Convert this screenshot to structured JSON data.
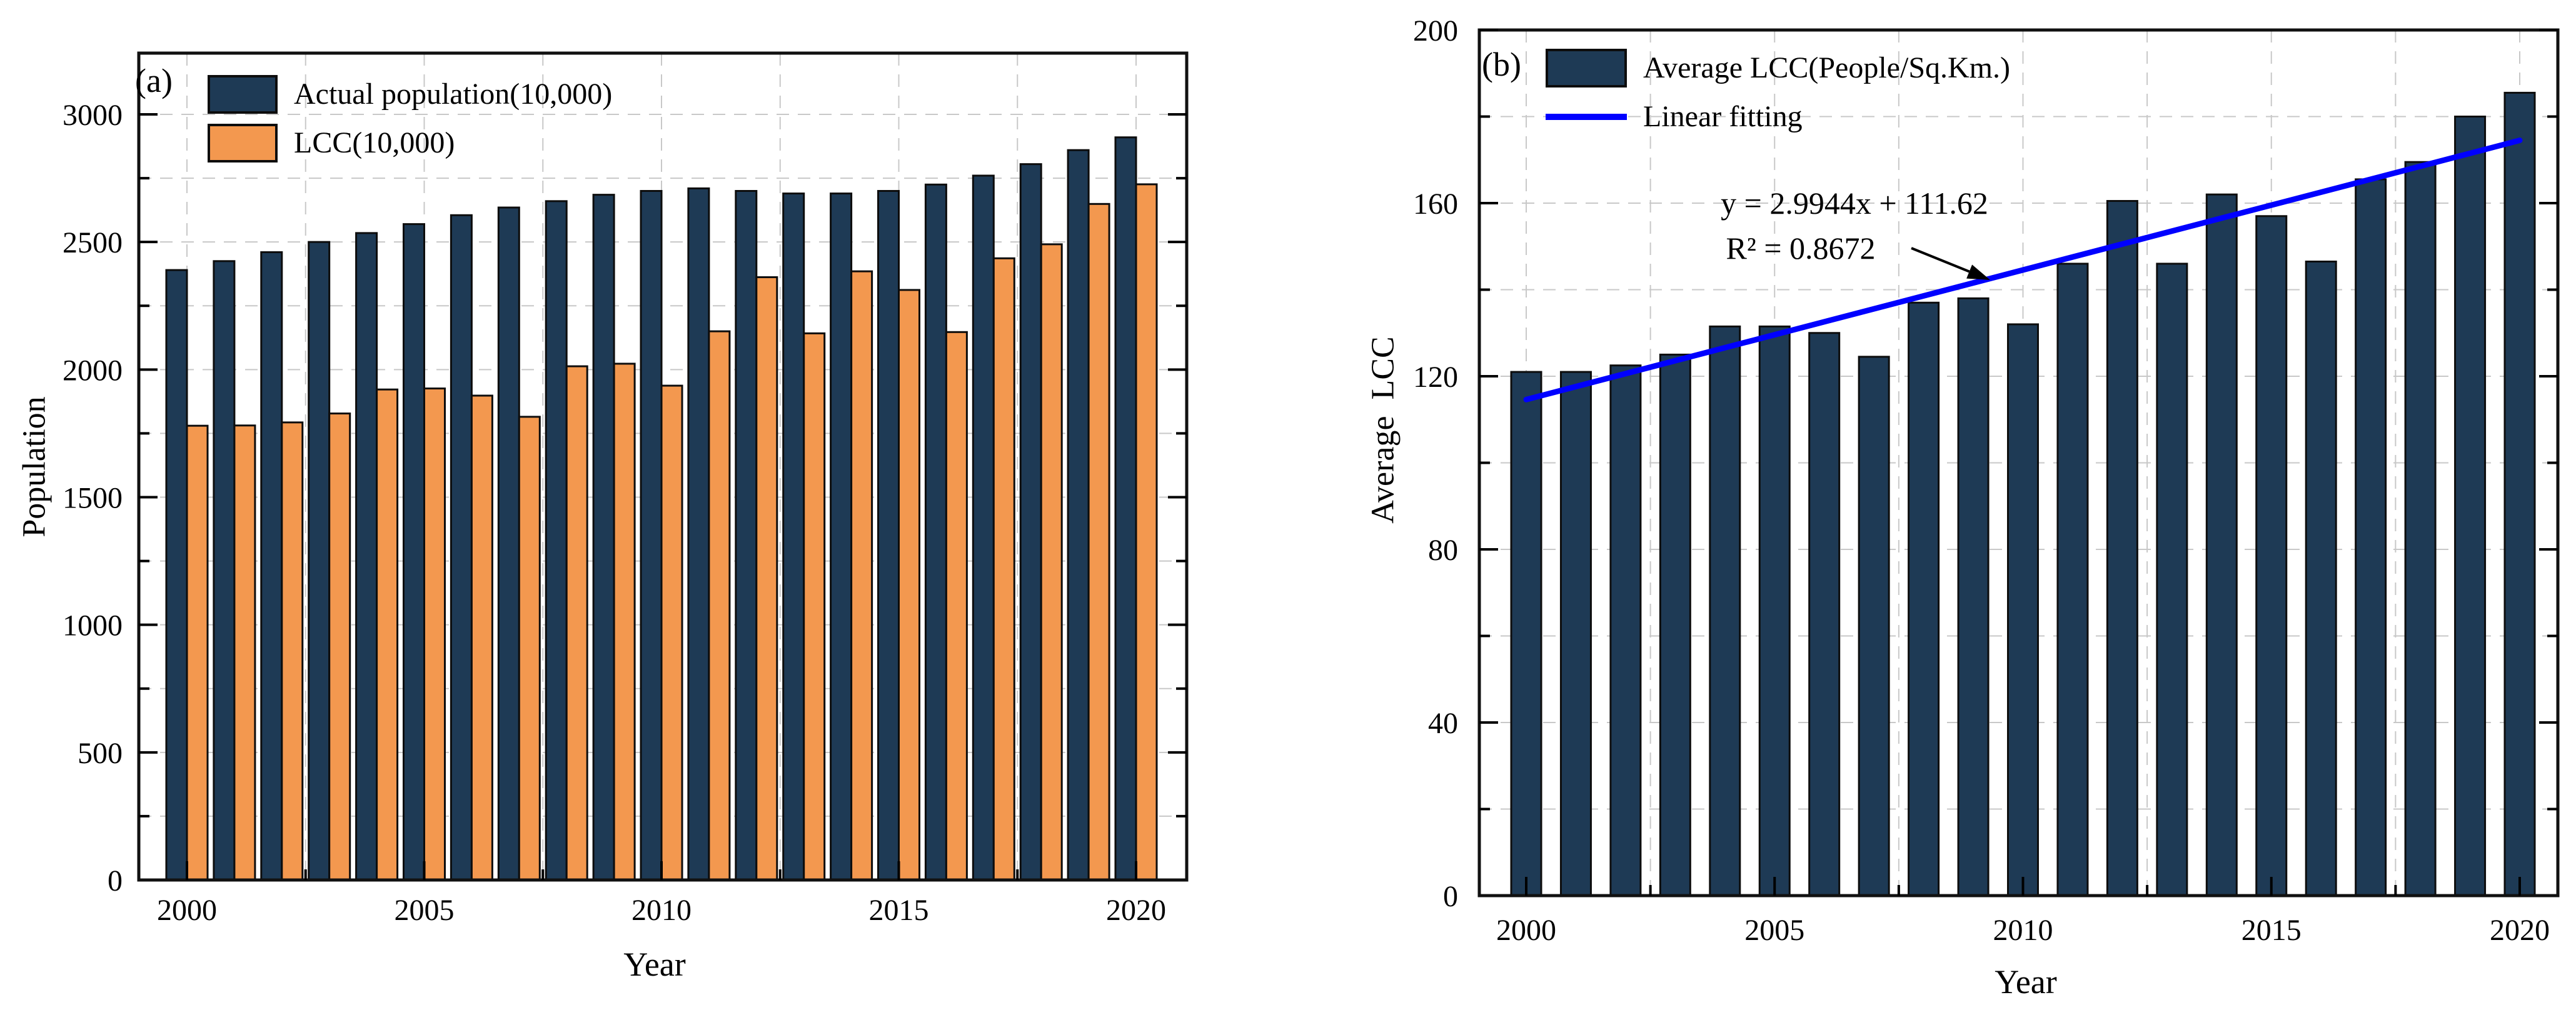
{
  "page": {
    "background": "#ffffff"
  },
  "colors": {
    "bar_navy": "#1e3a55",
    "bar_orange": "#f3984f",
    "fit_line_blue": "#0000ff",
    "gridline": "#c8c8c8",
    "frame": "#111111"
  },
  "chart_data": [
    {
      "type": "bar",
      "panel_label": "(a)",
      "xlabel": "Year",
      "ylabel": "Population",
      "categories": [
        2000,
        2001,
        2002,
        2003,
        2004,
        2005,
        2006,
        2007,
        2008,
        2009,
        2010,
        2011,
        2012,
        2013,
        2014,
        2015,
        2016,
        2017,
        2018,
        2019,
        2020
      ],
      "series": [
        {
          "name": "Actual population(10,000)",
          "color": "#1e3a55",
          "values": [
            2390,
            2425,
            2460,
            2500,
            2535,
            2570,
            2605,
            2635,
            2660,
            2685,
            2700,
            2710,
            2700,
            2690,
            2690,
            2700,
            2725,
            2760,
            2805,
            2860,
            2910
          ]
        },
        {
          "name": "LCC(10,000)",
          "color": "#f3984f",
          "values": [
            1780,
            1781,
            1793,
            1828,
            1922,
            1926,
            1898,
            1815,
            2013,
            2023,
            1937,
            2150,
            2362,
            2142,
            2385,
            2312,
            2147,
            2436,
            2491,
            2649,
            2726
          ]
        }
      ],
      "ylim": [
        0,
        3240
      ],
      "y_tick_max": 3000,
      "y_tick_labels": [
        "0",
        "500",
        "1000",
        "1500",
        "2000",
        "2500",
        "3000"
      ],
      "x_tick_labels": [
        "2000",
        "2005",
        "2010",
        "2015",
        "2020"
      ],
      "grid": true,
      "legend_position": "top-left"
    },
    {
      "type": "bar",
      "panel_label": "(b)",
      "xlabel": "Year",
      "ylabel": "Average  LCC",
      "categories": [
        2000,
        2001,
        2002,
        2003,
        2004,
        2005,
        2006,
        2007,
        2008,
        2009,
        2010,
        2011,
        2012,
        2013,
        2014,
        2015,
        2016,
        2017,
        2018,
        2019,
        2020
      ],
      "series": [
        {
          "name": "Average LCC(People/Sq.Km.)",
          "color": "#1e3a55",
          "values": [
            121,
            121,
            122.5,
            125,
            131.5,
            131.5,
            130,
            124.5,
            137,
            138,
            132,
            146,
            160.5,
            146,
            162,
            157,
            146.5,
            165.5,
            169.5,
            180,
            185.5
          ]
        }
      ],
      "fit_line": {
        "name": "Linear fitting",
        "color": "#0000ff",
        "slope": 2.9944,
        "intercept": 111.62,
        "equation": "y = 2.9944x + 111.62",
        "r_squared": "R² = 0.8672"
      },
      "ylim": [
        0,
        200
      ],
      "y_tick_max": 200,
      "y_tick_labels": [
        "0",
        "40",
        "80",
        "120",
        "160",
        "200"
      ],
      "x_tick_labels": [
        "2000",
        "2005",
        "2010",
        "2015",
        "2020"
      ],
      "grid": true,
      "legend_position": "top-left"
    }
  ]
}
